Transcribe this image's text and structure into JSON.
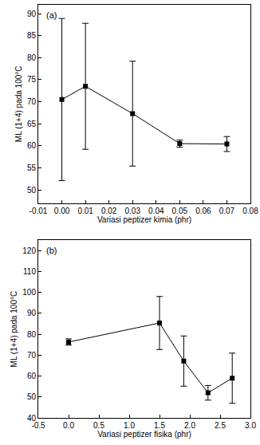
{
  "chart_data": [
    {
      "type": "line",
      "annotations": [
        "(a)"
      ],
      "x_label": "Variasi peptizer kimia (phr)",
      "y_label": "ML (1+4) pada 100°C",
      "x": [
        0,
        0.01,
        0.03,
        0.05,
        0.07
      ],
      "values": [
        70.5,
        73.5,
        67.3,
        60.5,
        60.4
      ],
      "error": [
        18.4,
        14.3,
        11.9,
        0.8,
        1.7
      ],
      "color": "#000000",
      "marker": "square",
      "xlim": [
        -0.01,
        0.08
      ],
      "xticks": [
        -0.01,
        {
          "value": 0,
          "label": "0.00"
        },
        0.01,
        0.02,
        0.03,
        0.04,
        0.05,
        0.06,
        0.07,
        0.08
      ],
      "ylim": [
        47,
        92
      ],
      "yticks": [
        50,
        55,
        60,
        65,
        70,
        75,
        80,
        85,
        90
      ],
      "grid": false
    },
    {
      "type": "line",
      "annotations": [
        "(b)"
      ],
      "x_label": "Variasi peptizer fisika (phr)",
      "y_label": "ML (1+4) pada 100°C",
      "x": [
        0,
        1.5,
        1.9,
        2.3,
        2.7
      ],
      "values": [
        76.3,
        85.4,
        67.2,
        52,
        59
      ],
      "error": [
        1.5,
        12.7,
        12,
        3.5,
        12
      ],
      "color": "#000000",
      "marker": "square",
      "xlim": [
        -0.5,
        3.0
      ],
      "xticks": [
        -0.5,
        {
          "value": 0,
          "label": "0.0"
        },
        0.5,
        {
          "value": 1,
          "label": "1.0"
        },
        1.5,
        {
          "value": 2,
          "label": "2.0"
        },
        2.5,
        {
          "value": 3,
          "label": "3.0"
        }
      ],
      "ylim": [
        40,
        125
      ],
      "yticks": [
        40,
        50,
        60,
        70,
        80,
        90,
        100,
        110,
        120
      ],
      "grid": false
    }
  ]
}
